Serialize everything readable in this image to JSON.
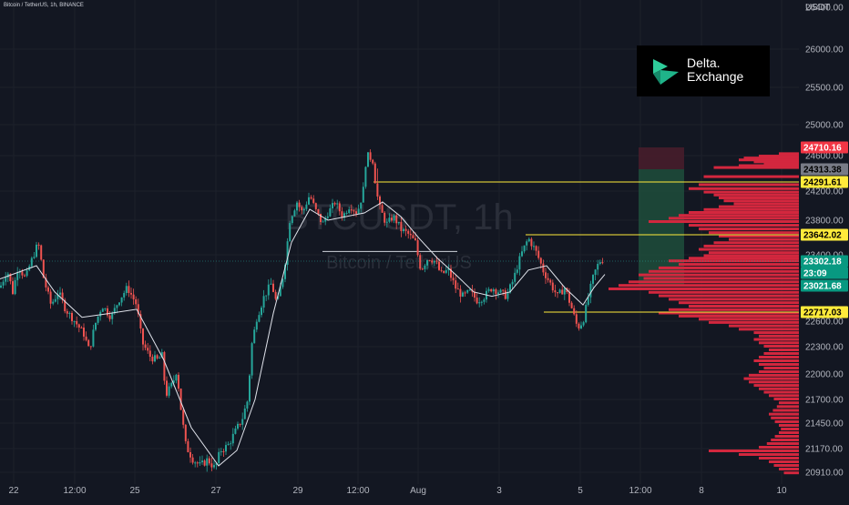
{
  "header": {
    "symbol_line": "Bitcoin / TetherUS, 1h, BINANCE"
  },
  "watermark": {
    "symbol": "BTCUSDT, 1h",
    "name": "Bitcoin / TetherUS"
  },
  "currency_label": "USDT",
  "logo": {
    "name": "Delta.",
    "sub": "Exchange"
  },
  "price_tags": [
    {
      "id": "upper-target",
      "label": "24710.16",
      "bg": "#f23645",
      "fg": "#ffffff"
    },
    {
      "id": "range-high",
      "label": "24313.38",
      "bg": "#787b86",
      "fg": "#000000"
    },
    {
      "id": "resistance-1",
      "label": "24291.61",
      "bg": "#ffeb3b",
      "fg": "#000000"
    },
    {
      "id": "resistance-2",
      "label": "23642.02",
      "bg": "#ffeb3b",
      "fg": "#000000"
    },
    {
      "id": "last-price",
      "label": "23302.18",
      "bg": "#089981",
      "fg": "#ffffff"
    },
    {
      "id": "countdown",
      "label": "23:09",
      "bg": "#089981",
      "fg": "#ffffff"
    },
    {
      "id": "entry",
      "label": "23021.68",
      "bg": "#089981",
      "fg": "#ffffff"
    },
    {
      "id": "support",
      "label": "22717.03",
      "bg": "#ffeb3b",
      "fg": "#000000"
    }
  ],
  "colors": {
    "background": "#131722",
    "up_candle": "#26a69a",
    "down_candle": "#ef5350",
    "moving_average": "#e0e3eb",
    "level_line": "#ffeb3b",
    "volume_profile": "#d3273e",
    "profit_zone": "#1e4d3b",
    "loss_zone": "#4a1d2b",
    "axis_text": "#b2b5be"
  },
  "chart_data": {
    "type": "candlestick",
    "title": "Bitcoin / TetherUS, 1h, BINANCE",
    "x_tick_labels": [
      "22",
      "12:00",
      "25",
      "27",
      "29",
      "12:00",
      "Aug",
      "3",
      "5",
      "12:00",
      "8",
      "10"
    ],
    "y_tick_labels": [
      "26400.00",
      "26000.00",
      "25500.00",
      "25000.00",
      "24600.00",
      "24200.00",
      "23800.00",
      "23400.00",
      "22600.00",
      "22300.00",
      "22000.00",
      "21700.00",
      "21450.00",
      "21170.00",
      "20910.00"
    ],
    "ylim": [
      20800,
      26600
    ],
    "price_path": [
      [
        0,
        23000
      ],
      [
        8,
        23200
      ],
      [
        14,
        22950
      ],
      [
        20,
        23250
      ],
      [
        28,
        23100
      ],
      [
        34,
        23300
      ],
      [
        42,
        23550
      ],
      [
        48,
        23100
      ],
      [
        56,
        22800
      ],
      [
        64,
        22950
      ],
      [
        72,
        22750
      ],
      [
        82,
        22600
      ],
      [
        92,
        22450
      ],
      [
        98,
        22250
      ],
      [
        104,
        22550
      ],
      [
        112,
        22800
      ],
      [
        122,
        22650
      ],
      [
        130,
        22850
      ],
      [
        140,
        23000
      ],
      [
        150,
        22800
      ],
      [
        156,
        22350
      ],
      [
        164,
        22200
      ],
      [
        172,
        22150
      ],
      [
        178,
        22200
      ],
      [
        182,
        21750
      ],
      [
        190,
        21900
      ],
      [
        194,
        22050
      ],
      [
        198,
        21650
      ],
      [
        204,
        21200
      ],
      [
        212,
        21050
      ],
      [
        220,
        20980
      ],
      [
        228,
        21050
      ],
      [
        236,
        20950
      ],
      [
        242,
        21150
      ],
      [
        250,
        21200
      ],
      [
        258,
        21350
      ],
      [
        266,
        21500
      ],
      [
        272,
        21700
      ],
      [
        276,
        22300
      ],
      [
        282,
        22650
      ],
      [
        290,
        22900
      ],
      [
        298,
        23050
      ],
      [
        304,
        22800
      ],
      [
        312,
        23200
      ],
      [
        318,
        23800
      ],
      [
        326,
        24050
      ],
      [
        332,
        23900
      ],
      [
        340,
        24150
      ],
      [
        346,
        23950
      ],
      [
        354,
        23750
      ],
      [
        360,
        23900
      ],
      [
        368,
        24050
      ],
      [
        376,
        23850
      ],
      [
        384,
        24000
      ],
      [
        392,
        23900
      ],
      [
        398,
        24150
      ],
      [
        404,
        24600
      ],
      [
        410,
        24450
      ],
      [
        416,
        24000
      ],
      [
        424,
        23750
      ],
      [
        432,
        23850
      ],
      [
        440,
        23700
      ],
      [
        448,
        23650
      ],
      [
        456,
        23550
      ],
      [
        462,
        23200
      ],
      [
        470,
        23350
      ],
      [
        478,
        23300
      ],
      [
        484,
        23150
      ],
      [
        492,
        23200
      ],
      [
        500,
        23000
      ],
      [
        508,
        22900
      ],
      [
        516,
        22950
      ],
      [
        524,
        22850
      ],
      [
        532,
        22900
      ],
      [
        540,
        23000
      ],
      [
        548,
        22950
      ],
      [
        556,
        22900
      ],
      [
        564,
        23100
      ],
      [
        572,
        23400
      ],
      [
        580,
        23600
      ],
      [
        588,
        23450
      ],
      [
        596,
        23200
      ],
      [
        604,
        23050
      ],
      [
        612,
        22900
      ],
      [
        620,
        23000
      ],
      [
        628,
        22750
      ],
      [
        634,
        22520
      ],
      [
        640,
        22600
      ],
      [
        646,
        22900
      ],
      [
        652,
        23150
      ],
      [
        658,
        23300
      ],
      [
        664,
        23330
      ]
    ],
    "moving_average": [
      [
        0,
        23100
      ],
      [
        40,
        23250
      ],
      [
        60,
        22950
      ],
      [
        90,
        22650
      ],
      [
        120,
        22700
      ],
      [
        150,
        22750
      ],
      [
        180,
        22150
      ],
      [
        210,
        21400
      ],
      [
        240,
        20980
      ],
      [
        260,
        21150
      ],
      [
        280,
        21700
      ],
      [
        300,
        22700
      ],
      [
        320,
        23550
      ],
      [
        340,
        23950
      ],
      [
        360,
        23800
      ],
      [
        380,
        23850
      ],
      [
        400,
        23900
      ],
      [
        420,
        24050
      ],
      [
        440,
        23850
      ],
      [
        460,
        23600
      ],
      [
        480,
        23350
      ],
      [
        500,
        23150
      ],
      [
        520,
        22950
      ],
      [
        540,
        22900
      ],
      [
        560,
        22950
      ],
      [
        580,
        23200
      ],
      [
        600,
        23250
      ],
      [
        620,
        23000
      ],
      [
        640,
        22800
      ],
      [
        652,
        23000
      ],
      [
        664,
        23150
      ]
    ],
    "horizontal_levels": [
      {
        "price": 24291.61,
        "x_start": 410,
        "role": "resistance-1"
      },
      {
        "price": 23642.02,
        "x_start": 577,
        "role": "resistance-2"
      },
      {
        "price": 22717.03,
        "x_start": 597,
        "role": "support"
      }
    ],
    "drawn_segments": [
      {
        "from": [
          354,
          23440
        ],
        "to": [
          502,
          23440
        ]
      }
    ],
    "position_tool": {
      "x_from": 701,
      "x_to": 751,
      "target": 24710.16,
      "entry": 24313.38,
      "stop": 23021.68
    },
    "volume_profile": [
      [
        24620,
        20
      ],
      [
        24580,
        40
      ],
      [
        24540,
        55
      ],
      [
        24500,
        60
      ],
      [
        24460,
        45
      ],
      [
        24420,
        35
      ],
      [
        24380,
        60
      ],
      [
        24340,
        85
      ],
      [
        24300,
        95
      ],
      [
        24260,
        100
      ],
      [
        24220,
        110
      ],
      [
        24180,
        95
      ],
      [
        24140,
        85
      ],
      [
        24100,
        80
      ],
      [
        24060,
        75
      ],
      [
        24020,
        65
      ],
      [
        23980,
        80
      ],
      [
        23940,
        95
      ],
      [
        23900,
        110
      ],
      [
        23860,
        120
      ],
      [
        23820,
        130
      ],
      [
        23780,
        150
      ],
      [
        23740,
        110
      ],
      [
        23700,
        100
      ],
      [
        23660,
        90
      ],
      [
        23620,
        80
      ],
      [
        23580,
        70
      ],
      [
        23540,
        85
      ],
      [
        23500,
        95
      ],
      [
        23460,
        100
      ],
      [
        23420,
        90
      ],
      [
        23380,
        95
      ],
      [
        23340,
        110
      ],
      [
        23300,
        130
      ],
      [
        23260,
        120
      ],
      [
        23220,
        140
      ],
      [
        23180,
        150
      ],
      [
        23140,
        160
      ],
      [
        23100,
        155
      ],
      [
        23060,
        170
      ],
      [
        23020,
        180
      ],
      [
        22980,
        190
      ],
      [
        22940,
        150
      ],
      [
        22900,
        140
      ],
      [
        22860,
        130
      ],
      [
        22820,
        120
      ],
      [
        22780,
        110
      ],
      [
        22740,
        130
      ],
      [
        22700,
        140
      ],
      [
        22660,
        120
      ],
      [
        22620,
        100
      ],
      [
        22580,
        90
      ],
      [
        22540,
        70
      ],
      [
        22500,
        60
      ],
      [
        22460,
        45
      ],
      [
        22420,
        40
      ],
      [
        22380,
        45
      ],
      [
        22340,
        40
      ],
      [
        22300,
        35
      ],
      [
        22260,
        30
      ],
      [
        22220,
        35
      ],
      [
        22180,
        40
      ],
      [
        22140,
        45
      ],
      [
        22100,
        40
      ],
      [
        22060,
        35
      ],
      [
        22020,
        40
      ],
      [
        21980,
        50
      ],
      [
        21940,
        55
      ],
      [
        21900,
        50
      ],
      [
        21860,
        45
      ],
      [
        21820,
        40
      ],
      [
        21780,
        35
      ],
      [
        21740,
        30
      ],
      [
        21700,
        25
      ],
      [
        21660,
        20
      ],
      [
        21620,
        22
      ],
      [
        21580,
        26
      ],
      [
        21540,
        30
      ],
      [
        21500,
        28
      ],
      [
        21460,
        24
      ],
      [
        21420,
        20
      ],
      [
        21380,
        18
      ],
      [
        21340,
        20
      ],
      [
        21300,
        24
      ],
      [
        21260,
        28
      ],
      [
        21220,
        32
      ],
      [
        21180,
        40
      ],
      [
        21140,
        90
      ],
      [
        21100,
        60
      ],
      [
        21060,
        40
      ],
      [
        21020,
        30
      ],
      [
        20980,
        25
      ],
      [
        20940,
        20
      ],
      [
        20900,
        15
      ]
    ]
  }
}
